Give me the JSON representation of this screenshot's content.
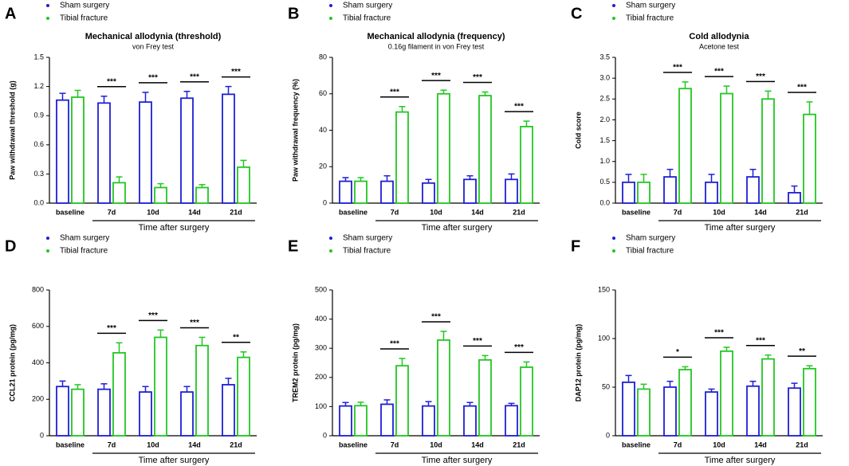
{
  "chart_data": [
    {
      "type": "bar",
      "panel": "A",
      "title": "Mechanical allodynia (threshold)",
      "subtitle": "von Frey test",
      "ylabel": "Paw withdrawal threshold (g)",
      "xlabel": "Time after surgery",
      "categories": [
        "baseline",
        "7d",
        "10d",
        "14d",
        "21d"
      ],
      "series": [
        {
          "name": "Sham surgery",
          "color": "#1f1fd6",
          "values": [
            1.06,
            1.03,
            1.04,
            1.08,
            1.12
          ],
          "errors": [
            0.07,
            0.07,
            0.1,
            0.07,
            0.08
          ]
        },
        {
          "name": "Tibial fracture",
          "color": "#22c722",
          "values": [
            1.09,
            0.21,
            0.16,
            0.16,
            0.37
          ],
          "errors": [
            0.07,
            0.06,
            0.04,
            0.03,
            0.07
          ]
        }
      ],
      "annotations": [
        null,
        "***",
        "***",
        "***",
        "***"
      ],
      "ylim": [
        0,
        1.5
      ],
      "yticks": [
        {
          "value": 0,
          "label": "0.0"
        },
        0.3,
        0.6,
        0.9,
        1.2,
        1.5
      ]
    },
    {
      "type": "bar",
      "panel": "B",
      "title": "Mechanical allodynia (frequency)",
      "subtitle": "0.16g filament in von Frey test",
      "ylabel": "Paw withdrawal frequency (%)",
      "xlabel": "Time after surgery",
      "categories": [
        "baseline",
        "7d",
        "10d",
        "14d",
        "21d"
      ],
      "series": [
        {
          "name": "Sham surgery",
          "color": "#1f1fd6",
          "values": [
            12,
            12,
            11,
            13,
            13
          ],
          "errors": [
            2,
            3,
            2,
            2,
            3
          ]
        },
        {
          "name": "Tibial fracture",
          "color": "#22c722",
          "values": [
            12,
            50,
            60,
            59,
            42
          ],
          "errors": [
            2,
            3,
            2,
            2,
            3
          ]
        }
      ],
      "annotations": [
        null,
        "***",
        "***",
        "***",
        "***"
      ],
      "ylim": [
        0,
        80
      ],
      "yticks": [
        0,
        20,
        40,
        60,
        80
      ]
    },
    {
      "type": "bar",
      "panel": "C",
      "title": "Cold allodynia",
      "subtitle": "Acetone test",
      "ylabel": "Cold score",
      "xlabel": "Time after surgery",
      "categories": [
        "baseline",
        "7d",
        "10d",
        "14d",
        "21d"
      ],
      "series": [
        {
          "name": "Sham surgery",
          "color": "#1f1fd6",
          "values": [
            0.5,
            0.63,
            0.5,
            0.63,
            0.25
          ],
          "errors": [
            0.19,
            0.18,
            0.19,
            0.18,
            0.16
          ]
        },
        {
          "name": "Tibial fracture",
          "color": "#22c722",
          "values": [
            0.5,
            2.75,
            2.63,
            2.5,
            2.13
          ],
          "errors": [
            0.19,
            0.16,
            0.18,
            0.19,
            0.3
          ]
        }
      ],
      "annotations": [
        null,
        "***",
        "***",
        "***",
        "***"
      ],
      "ylim": [
        0,
        3.5
      ],
      "yticks": [
        {
          "value": 0,
          "label": "0.0"
        },
        0.5,
        {
          "value": 1,
          "label": "1.0"
        },
        1.5,
        {
          "value": 2,
          "label": "2.0"
        },
        2.5,
        {
          "value": 3,
          "label": "3.0"
        },
        3.5
      ]
    },
    {
      "type": "bar",
      "panel": "D",
      "ylabel": "CCL21 protein (pg/mg)",
      "xlabel": "Time after surgery",
      "categories": [
        "baseline",
        "7d",
        "10d",
        "14d",
        "21d"
      ],
      "series": [
        {
          "name": "Sham surgery",
          "color": "#1f1fd6",
          "values": [
            270,
            255,
            240,
            240,
            280
          ],
          "errors": [
            30,
            30,
            30,
            30,
            35
          ]
        },
        {
          "name": "Tibial fracture",
          "color": "#22c722",
          "values": [
            255,
            455,
            540,
            495,
            430
          ],
          "errors": [
            25,
            55,
            40,
            45,
            30
          ]
        }
      ],
      "annotations": [
        null,
        "***",
        "***",
        "***",
        "**"
      ],
      "ylim": [
        0,
        800
      ],
      "yticks": [
        0,
        200,
        400,
        600,
        800
      ]
    },
    {
      "type": "bar",
      "panel": "E",
      "ylabel": "TREM2 protein (pg/mg)",
      "xlabel": "Time after surgery",
      "categories": [
        "baseline",
        "7d",
        "10d",
        "14d",
        "21d"
      ],
      "series": [
        {
          "name": "Sham surgery",
          "color": "#1f1fd6",
          "values": [
            102,
            108,
            102,
            102,
            103
          ],
          "errors": [
            12,
            15,
            15,
            12,
            8
          ]
        },
        {
          "name": "Tibial fracture",
          "color": "#22c722",
          "values": [
            103,
            240,
            328,
            260,
            235
          ],
          "errors": [
            12,
            25,
            30,
            15,
            18
          ]
        }
      ],
      "annotations": [
        null,
        "***",
        "***",
        "***",
        "***"
      ],
      "ylim": [
        0,
        500
      ],
      "yticks": [
        0,
        100,
        200,
        300,
        400,
        500
      ]
    },
    {
      "type": "bar",
      "panel": "F",
      "ylabel": "DAP12 protein (pg/mg)",
      "xlabel": "Time after surgery",
      "categories": [
        "baseline",
        "7d",
        "10d",
        "14d",
        "21d"
      ],
      "series": [
        {
          "name": "Sham surgery",
          "color": "#1f1fd6",
          "values": [
            55,
            50,
            45,
            51,
            49
          ],
          "errors": [
            7,
            6,
            3,
            5,
            5
          ]
        },
        {
          "name": "Tibial fracture",
          "color": "#22c722",
          "values": [
            48,
            68,
            87,
            79,
            69
          ],
          "errors": [
            5,
            3,
            4,
            4,
            3
          ]
        }
      ],
      "annotations": [
        null,
        "*",
        "***",
        "***",
        "**"
      ],
      "ylim": [
        0,
        150
      ],
      "yticks": [
        0,
        50,
        100,
        150
      ]
    }
  ]
}
